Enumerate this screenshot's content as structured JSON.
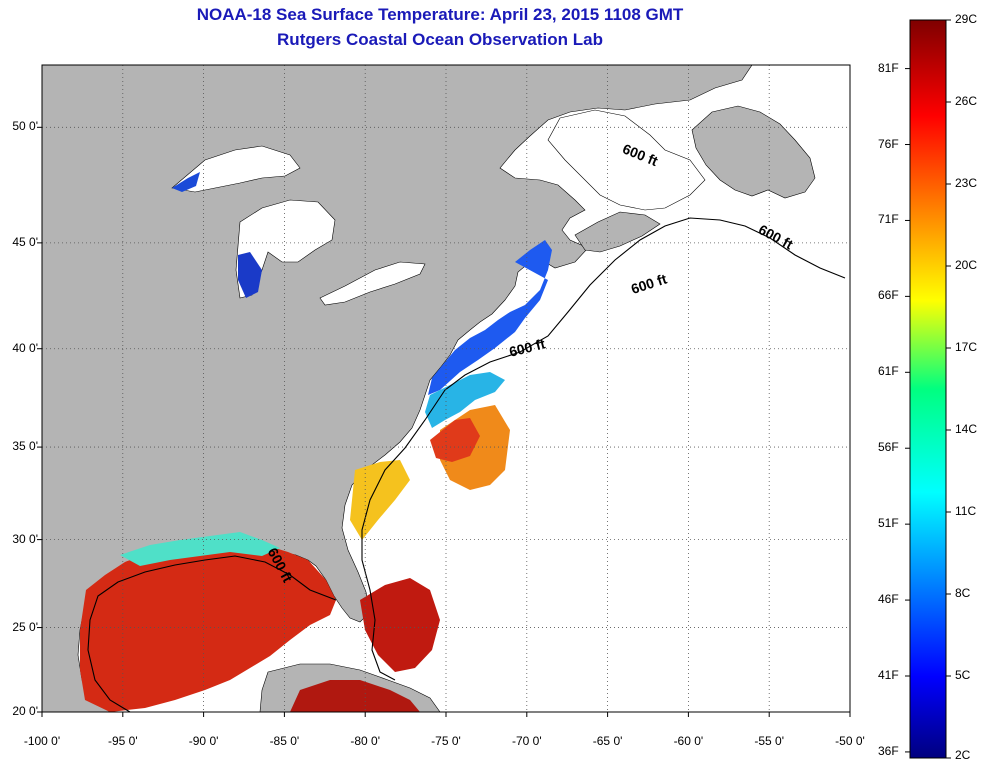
{
  "title": "NOAA-18 Sea Surface Temperature:  April 23, 2015 1108 GMT",
  "subtitle": "Rutgers Coastal Ocean Observation Lab",
  "map": {
    "lon_range": [
      -100,
      -50
    ],
    "lat_range": [
      20,
      52.5
    ],
    "lat_ticks": [
      "50 0'",
      "45 0'",
      "40 0'",
      "35 0'",
      "30 0'",
      "25 0'",
      "20 0'"
    ],
    "lat_values": [
      50,
      45,
      40,
      35,
      30,
      25,
      20
    ],
    "lon_ticks": [
      "-100 0'",
      "-95 0'",
      "-90 0'",
      "-85 0'",
      "-80 0'",
      "-75 0'",
      "-70 0'",
      "-65 0'",
      "-60 0'",
      "-55 0'",
      "-50 0'"
    ],
    "lon_values": [
      -100,
      -95,
      -90,
      -85,
      -80,
      -75,
      -70,
      -65,
      -60,
      -55,
      -50
    ],
    "contour_label": "600 ft",
    "land_color": "#b4b4b4",
    "grid": "dotted"
  },
  "colorbar": {
    "celsius_labels": [
      "29C",
      "26C",
      "23C",
      "20C",
      "17C",
      "14C",
      "11C",
      "8C",
      "5C",
      "2C"
    ],
    "fahrenheit_labels": [
      "81F",
      "76F",
      "71F",
      "66F",
      "61F",
      "56F",
      "51F",
      "46F",
      "41F",
      "36F"
    ],
    "celsius_values": [
      29,
      26,
      23,
      20,
      17,
      14,
      11,
      8,
      5,
      2
    ],
    "fahrenheit_values": [
      81,
      76,
      71,
      66,
      61,
      56,
      51,
      46,
      41,
      36
    ],
    "colormap": "jet"
  }
}
